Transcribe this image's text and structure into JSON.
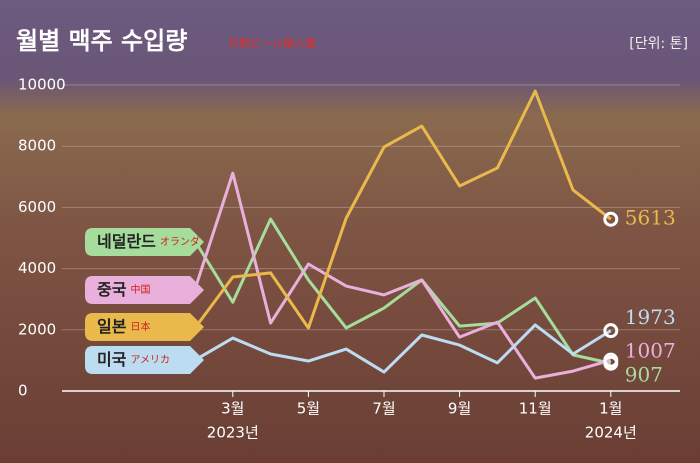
{
  "chart_data": {
    "type": "line",
    "title": "월별 맥주 수입량",
    "subtitle": "月間ビール輸入量",
    "unit": "[단위: 톤]",
    "categories": [
      null,
      "3월",
      null,
      "5월",
      null,
      "7월",
      null,
      "9월",
      null,
      "11월",
      null,
      "1월"
    ],
    "annotations": [
      "2023년",
      "2024년"
    ],
    "ylim": [
      0,
      10000
    ],
    "yticks": [
      0,
      2000,
      4000,
      6000,
      8000,
      10000
    ],
    "series": [
      {
        "name": "네덜란드",
        "name_ja": "オランダ",
        "color": "#a6dd9c",
        "values": [
          4900,
          2900,
          5620,
          3630,
          2060,
          2710,
          3630,
          2120,
          2220,
          3040,
          1180,
          907
        ]
      },
      {
        "name": "중국",
        "name_ja": "中国",
        "color": "#eab0dc",
        "values": [
          3330,
          7120,
          2220,
          4150,
          3430,
          3140,
          3630,
          1760,
          2250,
          420,
          650,
          1007
        ]
      },
      {
        "name": "일본",
        "name_ja": "日本",
        "color": "#e9b94c",
        "values": [
          2060,
          3725,
          3860,
          2060,
          5650,
          7970,
          8660,
          6700,
          7290,
          9800,
          6570,
          5613
        ]
      },
      {
        "name": "미국",
        "name_ja": "アメリカ",
        "color": "#bcdcf2",
        "values": [
          1010,
          1730,
          1210,
          980,
          1370,
          620,
          1830,
          1500,
          920,
          2160,
          1210,
          1973
        ]
      }
    ]
  }
}
